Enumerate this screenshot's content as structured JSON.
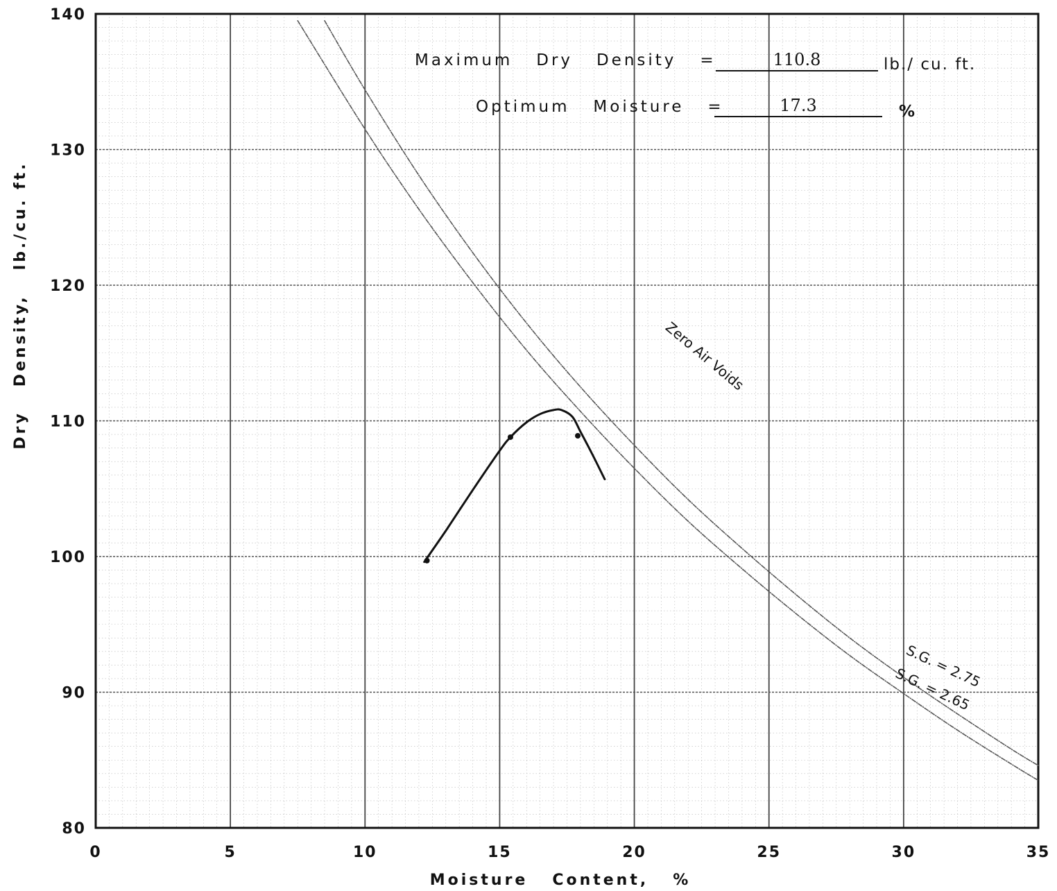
{
  "results": {
    "max_dry_density_label": "Maximum   Dry   Density   =",
    "max_dry_density_value": "110.8",
    "max_dry_density_unit": "lb./ cu. ft.",
    "optimum_moisture_label": "Optimum   Moisture   =",
    "optimum_moisture_value": "17.3",
    "optimum_moisture_unit": "%"
  },
  "chart_data": {
    "type": "line",
    "title": "",
    "xlabel": "Moisture   Content,   %",
    "ylabel": "Dry   Density,   lb./cu. ft.",
    "xlim": [
      0,
      35
    ],
    "ylim": [
      80,
      140
    ],
    "x_ticks": [
      0,
      5,
      10,
      15,
      20,
      25,
      30,
      35
    ],
    "y_ticks": [
      80,
      90,
      100,
      110,
      120,
      130,
      140
    ],
    "grid": true,
    "annotations": [
      {
        "text": "Zero Air Voids",
        "x": 22.5,
        "y": 114.5,
        "angle": 40
      },
      {
        "text": "S.G. = 2.75",
        "x": 31.4,
        "y": 91.6,
        "angle": 25
      },
      {
        "text": "S.G. = 2.65",
        "x": 31.0,
        "y": 89.9,
        "angle": 25
      }
    ],
    "series": [
      {
        "name": "S.G. = 2.75",
        "color": "#555555",
        "x": [
          8.5,
          10,
          12,
          14,
          16,
          18,
          20,
          22,
          24,
          26,
          28,
          30,
          32,
          34,
          35
        ],
        "y": [
          139.5,
          134.4,
          128.1,
          122.4,
          117.2,
          112.5,
          108.2,
          104.2,
          100.6,
          97.2,
          94.0,
          91.1,
          88.4,
          85.8,
          84.6
        ]
      },
      {
        "name": "S.G. = 2.65",
        "color": "#555555",
        "x": [
          7.5,
          10,
          12,
          14,
          16,
          18,
          20,
          22,
          24,
          26,
          28,
          30,
          32,
          34,
          35
        ],
        "y": [
          139.5,
          131.5,
          125.6,
          120.2,
          115.2,
          110.7,
          106.5,
          102.6,
          99.1,
          95.8,
          92.7,
          89.9,
          87.2,
          84.7,
          83.5
        ]
      },
      {
        "name": "",
        "color": "#111111",
        "x": [
          12.2,
          13.0,
          14.0,
          15.0,
          15.4,
          16.0,
          16.5,
          17.0,
          17.3,
          17.7,
          18.0,
          18.4,
          18.9
        ],
        "y": [
          99.6,
          101.9,
          104.9,
          107.8,
          108.8,
          109.9,
          110.5,
          110.8,
          110.8,
          110.3,
          109.2,
          107.7,
          105.7
        ]
      }
    ],
    "points": [
      {
        "x": 12.3,
        "y": 99.7
      },
      {
        "x": 15.4,
        "y": 108.8
      },
      {
        "x": 17.9,
        "y": 108.9
      }
    ]
  }
}
